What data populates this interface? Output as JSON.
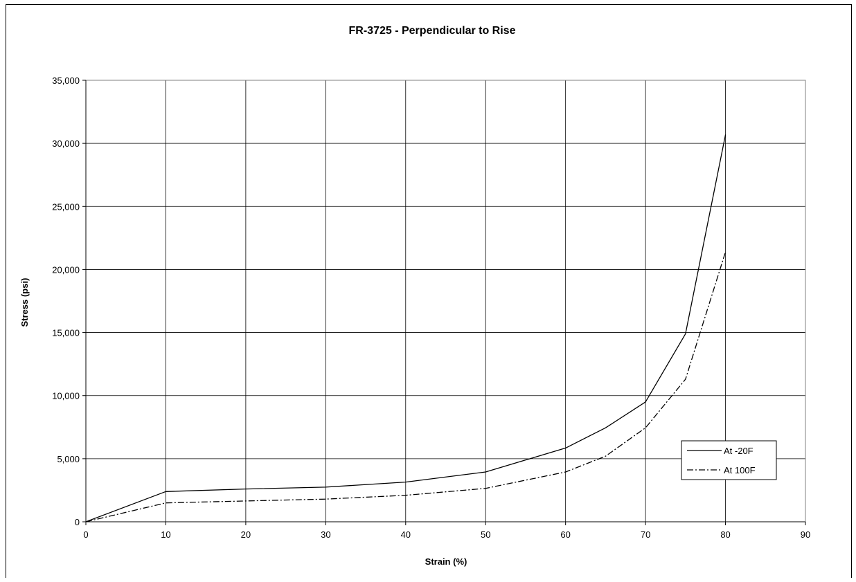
{
  "chart_data": {
    "type": "line",
    "title": "FR-3725 - Perpendicular to Rise",
    "xlabel": "Strain (%)",
    "ylabel": "Stress (psi)",
    "xlim": [
      0,
      90
    ],
    "ylim": [
      0,
      35000
    ],
    "x_ticks": [
      0,
      10,
      20,
      30,
      40,
      50,
      60,
      70,
      80,
      90
    ],
    "y_ticks": [
      0,
      5000,
      10000,
      15000,
      20000,
      25000,
      30000,
      35000
    ],
    "x_tick_labels": [
      "0",
      "10",
      "20",
      "30",
      "40",
      "50",
      "60",
      "70",
      "80",
      "90"
    ],
    "y_tick_labels": [
      "0",
      "5,000",
      "10,000",
      "15,000",
      "20,000",
      "25,000",
      "30,000",
      "35,000"
    ],
    "grid": true,
    "legend_position": "bottom-right",
    "series": [
      {
        "name": "At -20F",
        "style": "solid",
        "color": "#000000",
        "x": [
          0,
          10,
          20,
          30,
          40,
          50,
          60,
          65,
          70,
          75,
          80
        ],
        "y": [
          0,
          2400,
          2600,
          2750,
          3150,
          3950,
          5850,
          7450,
          9500,
          14900,
          30700
        ]
      },
      {
        "name": "At 100F",
        "style": "dash-dot",
        "color": "#000000",
        "x": [
          0,
          10,
          20,
          30,
          40,
          50,
          60,
          65,
          70,
          75,
          80
        ],
        "y": [
          0,
          1500,
          1650,
          1800,
          2100,
          2650,
          3950,
          5200,
          7450,
          11300,
          21400
        ]
      }
    ]
  }
}
